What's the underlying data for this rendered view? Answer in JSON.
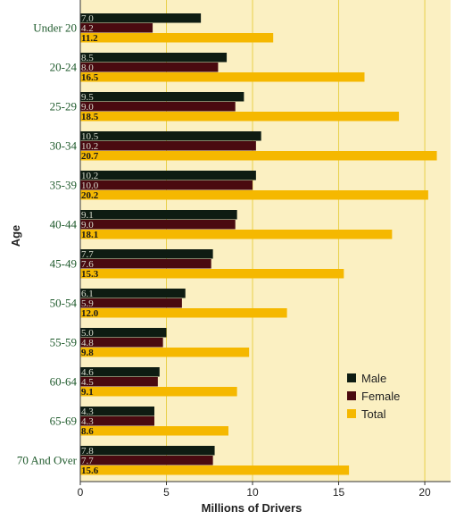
{
  "chart_data": {
    "type": "bar",
    "orientation": "horizontal",
    "title": "",
    "ylabel": "Age",
    "xlabel": "Millions of Drivers",
    "xlim": [
      0,
      21.5
    ],
    "xticks": [
      "0",
      "5",
      "10",
      "15",
      "20"
    ],
    "grid": true,
    "legend_position": "lower-right",
    "categories": [
      "Under 20",
      "20-24",
      "25-29",
      "30-34",
      "35-39",
      "40-44",
      "45-49",
      "50-54",
      "55-59",
      "60-64",
      "65-69",
      "70 And Over"
    ],
    "series": [
      {
        "name": "Male",
        "color": "#0e1c12",
        "values": [
          7.0,
          8.5,
          9.5,
          10.5,
          10.2,
          9.1,
          7.7,
          6.1,
          5.0,
          4.6,
          4.3,
          7.8
        ]
      },
      {
        "name": "Female",
        "color": "#4a0a10",
        "values": [
          4.2,
          8.0,
          9.0,
          10.2,
          10.0,
          9.0,
          7.6,
          5.9,
          4.8,
          4.5,
          4.3,
          7.7
        ]
      },
      {
        "name": "Total",
        "color": "#f5b800",
        "values": [
          11.2,
          16.5,
          18.5,
          20.7,
          20.2,
          18.1,
          15.3,
          12.0,
          9.8,
          9.1,
          8.6,
          15.6
        ]
      }
    ],
    "data_labels": [
      [
        "7.0",
        "4.2",
        "11.2"
      ],
      [
        "8.5",
        "8.0",
        "16.5"
      ],
      [
        "9.5",
        "9.0",
        "18.5"
      ],
      [
        "10.5",
        "10.2",
        "20.7"
      ],
      [
        "10.2",
        "10.0",
        "20.2"
      ],
      [
        "9.1",
        "9.0",
        "18.1"
      ],
      [
        "7.7",
        "7.6",
        "15.3"
      ],
      [
        "6.1",
        "5.9",
        "12.0"
      ],
      [
        "5.0",
        "4.8",
        "9.8"
      ],
      [
        "4.6",
        "4.5",
        "9.1"
      ],
      [
        "4.3",
        "4.3",
        "8.6"
      ],
      [
        "7.8",
        "7.7",
        "15.6"
      ]
    ],
    "colors": {
      "background": "#fbf0c2",
      "gridline": "#e8d04a",
      "category_text": "#1f5a2c",
      "axis_text": "#222222",
      "label_light": "#d9ddd0",
      "label_dark": "#1a1a1a"
    }
  }
}
